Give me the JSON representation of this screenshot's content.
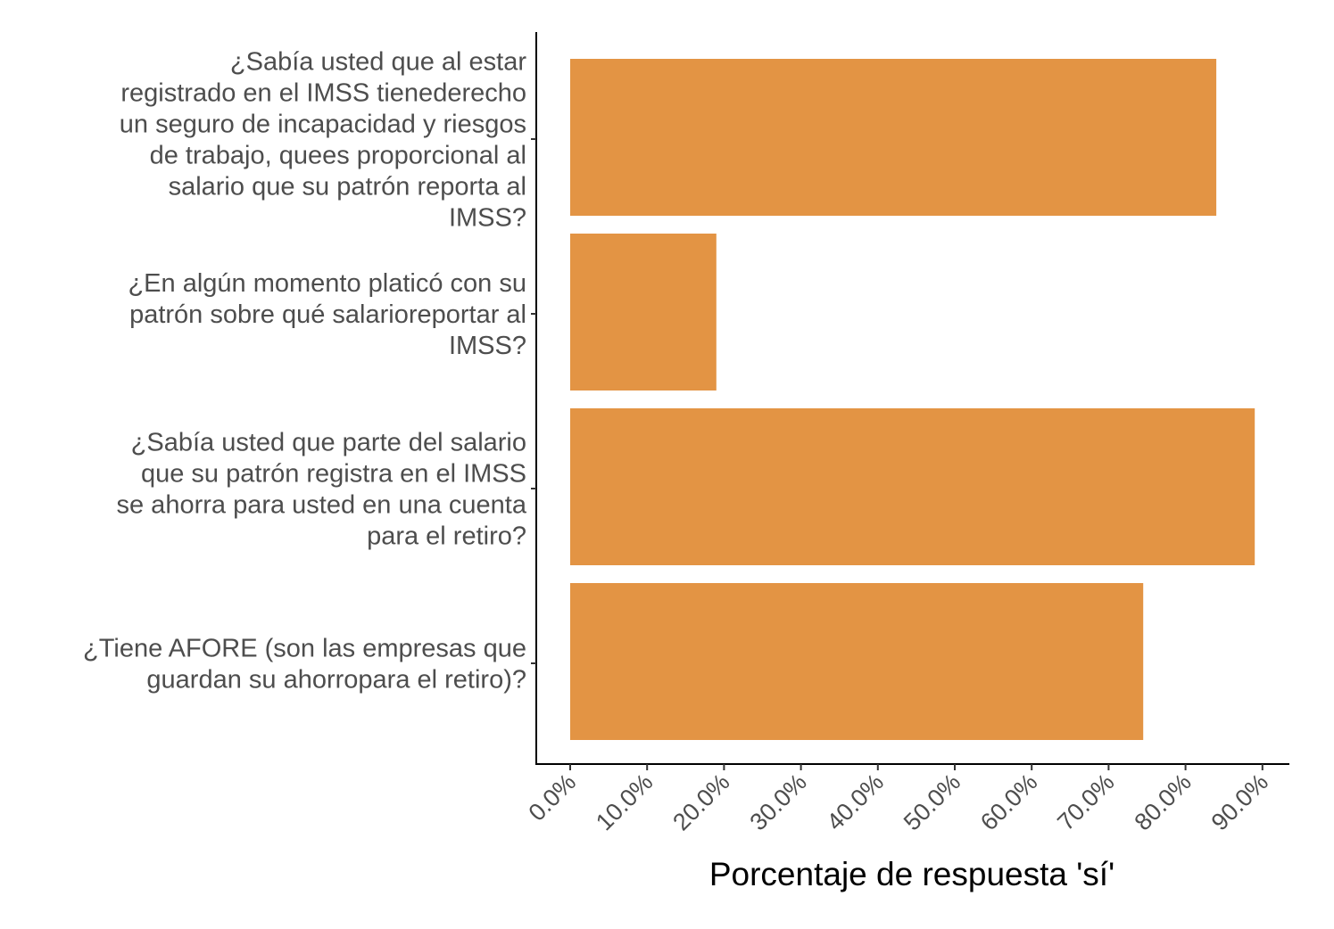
{
  "chart_data": {
    "type": "bar",
    "orientation": "horizontal",
    "categories": [
      [
        "¿Sabía usted que al estar",
        "registrado en el IMSS tienederecho",
        "un seguro de incapacidad y riesgos",
        "de trabajo, quees proporcional al",
        "salario que su patrón reporta al",
        "IMSS?"
      ],
      [
        "¿En algún momento platicó con su",
        "patrón sobre qué salarioreportar al",
        "IMSS?"
      ],
      [
        "¿Sabía usted que parte del salario",
        "que su patrón registra en el IMSS",
        "se ahorra para usted en una cuenta",
        "para el retiro?"
      ],
      [
        "¿Tiene AFORE (son las empresas que",
        "guardan su ahorropara el retiro)?"
      ]
    ],
    "values": [
      0.84,
      0.19,
      0.89,
      0.745
    ],
    "xlabel": "Porcentaje de respuesta 'sí'",
    "ylabel": "",
    "xlim": [
      0,
      0.9
    ],
    "xticks": [
      0.0,
      0.1,
      0.2,
      0.3,
      0.4,
      0.5,
      0.6,
      0.7,
      0.8,
      0.9
    ],
    "xtick_labels": [
      "0.0%",
      "10.0%",
      "20.0%",
      "30.0%",
      "40.0%",
      "50.0%",
      "60.0%",
      "70.0%",
      "80.0%",
      "90.0%"
    ],
    "bar_color": "#E39444",
    "grid": false,
    "legend": "none"
  }
}
